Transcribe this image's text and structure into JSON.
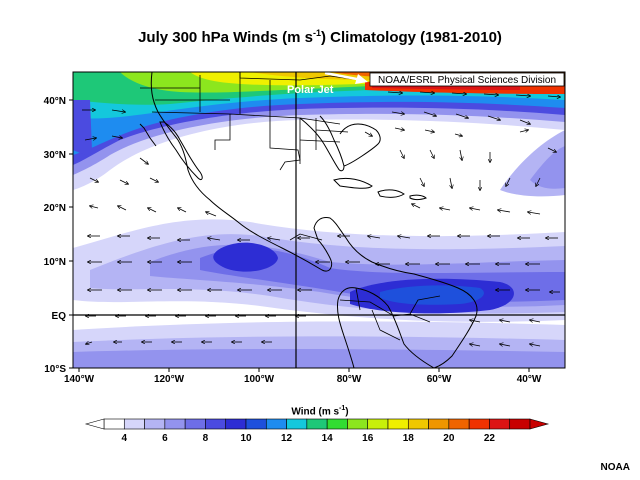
{
  "title": {
    "prefix": "July 300 hPa Winds (m s",
    "superscript": "-1",
    "suffix": ") Climatology (1981-2010)"
  },
  "credit_box": "NOAA/ESRL Physical Sciences Division",
  "annotation": "Polar Jet",
  "map": {
    "lat_labels": [
      "40°N",
      "30°N",
      "20°N",
      "10°N",
      "EQ",
      "10°S"
    ],
    "lon_labels": [
      "140°W",
      "120°W",
      "100°W",
      "80°W",
      "60°W",
      "40°W"
    ]
  },
  "colorbar": {
    "title_prefix": "Wind (m s",
    "title_superscript": "-1",
    "title_suffix": ")",
    "tick_labels": [
      "4",
      "6",
      "8",
      "10",
      "12",
      "14",
      "16",
      "18",
      "20",
      "22"
    ],
    "colors": [
      "#ffffff",
      "#d6d6fa",
      "#b4b4f4",
      "#9393ee",
      "#6e6ee8",
      "#4b4be0",
      "#2d2dd4",
      "#1e50dc",
      "#1e8cf0",
      "#14c8dc",
      "#1ec878",
      "#32dc32",
      "#8ce61e",
      "#c8f00a",
      "#f0f000",
      "#f0c800",
      "#f09600",
      "#f06400",
      "#f03200",
      "#dc1414",
      "#c80000"
    ]
  },
  "footer": "NOAA"
}
